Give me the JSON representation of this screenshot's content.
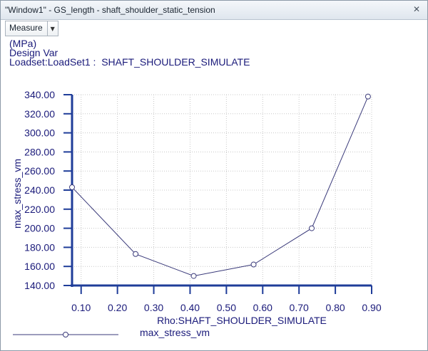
{
  "window": {
    "title": "\"Window1\" - GS_length - shaft_shoulder_static_tension",
    "close_glyph": "✕"
  },
  "toolbar": {
    "measure_label": "Measure",
    "dropdown_icon": "chevron-down-icon"
  },
  "header": {
    "units": "(MPa)",
    "design_var": "Design Var",
    "loadset": "Loadset:LoadSet1 :  SHAFT_SHOULDER_SIMULATE"
  },
  "chart_data": {
    "type": "line",
    "title": "",
    "xlabel": "Rho:SHAFT_SHOULDER_SIMULATE",
    "ylabel": "max_stress_vm",
    "xlim": [
      0.075,
      0.9
    ],
    "ylim": [
      140,
      340
    ],
    "x_ticks": [
      "0.10",
      "0.20",
      "0.30",
      "0.40",
      "0.50",
      "0.60",
      "0.70",
      "0.80",
      "0.90"
    ],
    "x_tick_values": [
      0.1,
      0.2,
      0.3,
      0.4,
      0.5,
      0.6,
      0.7,
      0.8,
      0.9
    ],
    "y_ticks": [
      "140.00",
      "160.00",
      "180.00",
      "200.00",
      "220.00",
      "240.00",
      "260.00",
      "280.00",
      "300.00",
      "320.00",
      "340.00"
    ],
    "y_tick_values": [
      140,
      160,
      180,
      200,
      220,
      240,
      260,
      280,
      300,
      320,
      340
    ],
    "grid": true,
    "series": [
      {
        "name": "max_stress_vm",
        "x": [
          0.075,
          0.25,
          0.41,
          0.575,
          0.735,
          0.89
        ],
        "y": [
          243,
          173,
          150,
          162,
          200,
          338
        ]
      }
    ],
    "colors": {
      "axis": "#1f3d99",
      "line": "#3a3a7a",
      "grid": "#c8c8c8",
      "text": "#1a1a7a"
    },
    "legend_position": "bottom-left"
  }
}
